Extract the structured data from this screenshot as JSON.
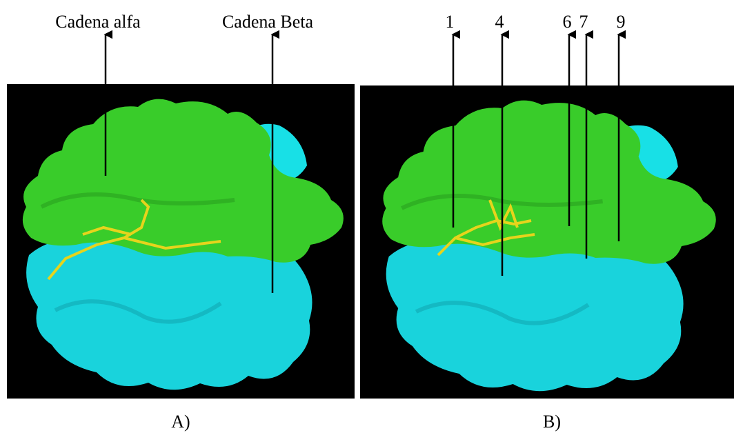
{
  "panel_a": {
    "labels": [
      "Cadena alfa",
      "Cadena Beta"
    ],
    "caption": "A)"
  },
  "panel_b": {
    "labels": [
      "1",
      "4",
      "6",
      "7",
      "9"
    ],
    "caption": "B)"
  }
}
